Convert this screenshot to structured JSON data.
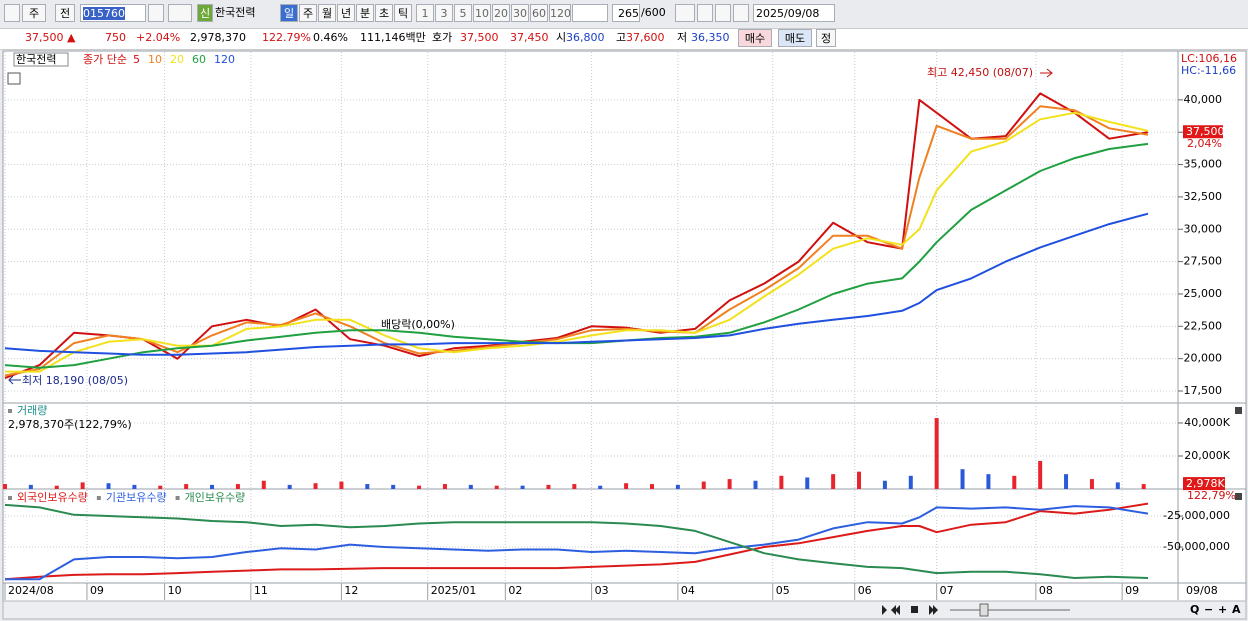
{
  "toolbar": {
    "market": "주",
    "prev": "전",
    "code": "015760",
    "badge": "신",
    "name": "한국전력",
    "periods": [
      "일",
      "주",
      "월",
      "년",
      "분",
      "초",
      "틱"
    ],
    "intervals": [
      "1",
      "3",
      "5",
      "10",
      "20",
      "30",
      "60",
      "120"
    ],
    "count": "265",
    "max": "/600",
    "date": "2025/09/08"
  },
  "quote": {
    "price": "37,500 ▲",
    "change": "750",
    "rate": "+2.04%",
    "volume": "2,978,370",
    "volume_ratio": "122.79%",
    "turnover": "0.46%",
    "amount": "111,146백만",
    "quote_label": "호가",
    "ask": "37,500",
    "bid": "37,450",
    "open_label": "시",
    "open": "36,800",
    "high_label": "고",
    "high": "37,600",
    "low_label": "저",
    "low": "36,350",
    "buy": "매수",
    "sell": "매도",
    "correct": "정"
  },
  "chart_data": [
    {
      "type": "line",
      "title": "한국전력",
      "legend_prefix": "종가 단순",
      "xlim": [
        0,
        265
      ],
      "x": [
        0,
        8,
        16,
        24,
        32,
        40,
        48,
        56,
        64,
        72,
        80,
        88,
        96,
        104,
        112,
        120,
        128,
        136,
        144,
        152,
        160,
        168,
        176,
        184,
        192,
        200,
        208,
        212,
        216,
        224,
        232,
        240,
        248,
        256,
        265
      ],
      "ylim": [
        16650,
        43700
      ],
      "yticks": [
        {
          "value": 17500,
          "label": "17,500"
        },
        {
          "value": 20000,
          "label": "20,000"
        },
        {
          "value": 22500,
          "label": "22,500"
        },
        {
          "value": 25000,
          "label": "25,000"
        },
        {
          "value": 27500,
          "label": "27,500"
        },
        {
          "value": 30000,
          "label": "30,000"
        },
        {
          "value": 32500,
          "label": "32,500"
        },
        {
          "value": 35000,
          "label": "35,000"
        },
        {
          "value": 37500,
          "label": "37,500"
        },
        {
          "value": 40000,
          "label": "40,000"
        }
      ],
      "grid": true,
      "series": [
        {
          "name": "5",
          "color": "#d01010",
          "values": [
            18500,
            19500,
            22000,
            21800,
            21500,
            20000,
            22500,
            23000,
            22500,
            23800,
            21500,
            21000,
            20200,
            20800,
            21000,
            21300,
            21600,
            22500,
            22400,
            22000,
            22300,
            24500,
            25800,
            27500,
            30500,
            29000,
            28500,
            40000,
            39000,
            37000,
            37200,
            40500,
            39000,
            37000,
            37500
          ]
        },
        {
          "name": "10",
          "color": "#f08020",
          "values": [
            18700,
            19200,
            21200,
            21800,
            21500,
            20500,
            21800,
            22800,
            22600,
            23500,
            22500,
            21200,
            20400,
            20600,
            20900,
            21200,
            21500,
            22200,
            22300,
            22100,
            22000,
            23800,
            25300,
            27000,
            29500,
            29500,
            28500,
            34000,
            38000,
            37000,
            37000,
            39500,
            39200,
            37800,
            37300
          ]
        },
        {
          "name": "20",
          "color": "#f2e21c",
          "values": [
            19000,
            19000,
            20500,
            21300,
            21500,
            21000,
            21000,
            22300,
            22500,
            23000,
            23000,
            21800,
            20800,
            20500,
            20800,
            21000,
            21300,
            21800,
            22200,
            22200,
            22000,
            23000,
            24800,
            26500,
            28500,
            29300,
            28800,
            30000,
            33000,
            36000,
            36800,
            38500,
            39000,
            38300,
            37600
          ]
        },
        {
          "name": "60",
          "color": "#20a040",
          "values": [
            19500,
            19300,
            19500,
            20000,
            20500,
            20800,
            21000,
            21400,
            21700,
            22000,
            22200,
            22200,
            22000,
            21700,
            21500,
            21300,
            21200,
            21200,
            21400,
            21600,
            21700,
            22000,
            22800,
            23800,
            25000,
            25800,
            26200,
            27500,
            29000,
            31500,
            33000,
            34500,
            35500,
            36200,
            36600
          ]
        },
        {
          "name": "120",
          "color": "#2050e0",
          "values": [
            20800,
            20600,
            20500,
            20400,
            20300,
            20300,
            20400,
            20500,
            20700,
            20900,
            21000,
            21100,
            21100,
            21200,
            21200,
            21200,
            21200,
            21300,
            21400,
            21500,
            21600,
            21800,
            22300,
            22700,
            23000,
            23300,
            23700,
            24300,
            25300,
            26200,
            27500,
            28600,
            29500,
            30400,
            31200
          ]
        }
      ],
      "annotations": {
        "high": "최고 42,450 (08/07)",
        "low": "최저 18,190 (08/05)",
        "dividend": "배당락(0,00%)"
      },
      "lc": "LC:106,16",
      "hc": "HC:-11,66",
      "last_price": "37,500",
      "last_rate": "2,04%"
    },
    {
      "type": "bar",
      "title": "거래량",
      "subtitle": "2,978,370주(122,79%)",
      "xlim": [
        0,
        265
      ],
      "x": [
        0,
        6,
        12,
        18,
        24,
        30,
        36,
        42,
        48,
        54,
        60,
        66,
        72,
        78,
        84,
        90,
        96,
        102,
        108,
        114,
        120,
        126,
        132,
        138,
        144,
        150,
        156,
        162,
        168,
        174,
        180,
        186,
        192,
        198,
        204,
        210,
        216,
        222,
        228,
        234,
        240,
        246,
        252,
        258,
        264
      ],
      "values": [
        3000,
        2500,
        2000,
        4000,
        3500,
        2500,
        2000,
        3000,
        2500,
        3000,
        5000,
        2500,
        3500,
        4500,
        3000,
        2500,
        2000,
        3000,
        2500,
        2000,
        2000,
        2500,
        3000,
        2000,
        3500,
        3000,
        2500,
        4500,
        6000,
        5000,
        8000,
        7000,
        9000,
        10500,
        5000,
        8000,
        43000,
        12000,
        9000,
        8000,
        17000,
        9000,
        6000,
        4000,
        2978
      ],
      "colors": [
        "#e8242c",
        "#2a5ad8",
        "#e8242c",
        "#e8242c",
        "#2a5ad8",
        "#2a5ad8",
        "#e8242c",
        "#e8242c",
        "#2a5ad8",
        "#e8242c",
        "#e8242c",
        "#2a5ad8",
        "#e8242c",
        "#e8242c",
        "#2a5ad8",
        "#2a5ad8",
        "#e8242c",
        "#e8242c",
        "#2a5ad8",
        "#e8242c",
        "#2a5ad8",
        "#e8242c",
        "#e8242c",
        "#2a5ad8",
        "#e8242c",
        "#e8242c",
        "#2a5ad8",
        "#e8242c",
        "#e8242c",
        "#2a5ad8",
        "#e8242c",
        "#2a5ad8",
        "#e8242c",
        "#e8242c",
        "#2a5ad8",
        "#2a5ad8",
        "#e8242c",
        "#2a5ad8",
        "#2a5ad8",
        "#e8242c",
        "#e8242c",
        "#2a5ad8",
        "#e8242c",
        "#2a5ad8",
        "#e8242c"
      ],
      "ylim": [
        0,
        51500
      ],
      "yticks": [
        {
          "value": 20000,
          "label": "20,000K"
        },
        {
          "value": 40000,
          "label": "40,000K"
        }
      ],
      "grid": true,
      "last_volume": "2,978K",
      "last_ratio": "122,79%"
    },
    {
      "type": "line",
      "xlim": [
        0,
        265
      ],
      "x": [
        0,
        8,
        16,
        24,
        32,
        40,
        48,
        56,
        64,
        72,
        80,
        88,
        96,
        104,
        112,
        120,
        128,
        136,
        144,
        152,
        160,
        168,
        176,
        184,
        192,
        200,
        208,
        212,
        216,
        224,
        232,
        240,
        248,
        256,
        265
      ],
      "ylim": [
        -78200000,
        -4000000
      ],
      "yticks": [
        {
          "value": -50000000,
          "label": "-50,000,000"
        },
        {
          "value": -25000000,
          "label": "-25,000,000"
        }
      ],
      "grid": true,
      "xticks": [
        {
          "value": 0,
          "label": "2024/08"
        },
        {
          "value": 19,
          "label": "09"
        },
        {
          "value": 37,
          "label": "10"
        },
        {
          "value": 57,
          "label": "11"
        },
        {
          "value": 78,
          "label": "12"
        },
        {
          "value": 98,
          "label": "2025/01"
        },
        {
          "value": 116,
          "label": "02"
        },
        {
          "value": 136,
          "label": "03"
        },
        {
          "value": 156,
          "label": "04"
        },
        {
          "value": 178,
          "label": "05"
        },
        {
          "value": 197,
          "label": "06"
        },
        {
          "value": 216,
          "label": "07"
        },
        {
          "value": 239,
          "label": "08"
        },
        {
          "value": 259,
          "label": "09"
        }
      ],
      "end_label": "09/08",
      "series": [
        {
          "name": "외국인보유수량",
          "color": "#dd1a1a",
          "values": [
            -76000000,
            -74000000,
            -72500000,
            -72000000,
            -72000000,
            -71000000,
            -70000000,
            -69000000,
            -68000000,
            -68000000,
            -67500000,
            -67000000,
            -67000000,
            -67000000,
            -67000000,
            -67000000,
            -67000000,
            -66000000,
            -65000000,
            -64000000,
            -62000000,
            -56000000,
            -50000000,
            -47000000,
            -42000000,
            -37000000,
            -33000000,
            -33000000,
            -38000000,
            -32000000,
            -30000000,
            -21000000,
            -23000000,
            -20000000,
            -15000000
          ]
        },
        {
          "name": "기관보유수량",
          "color": "#2d5ee0",
          "values": [
            -76000000,
            -76000000,
            -60000000,
            -58000000,
            -58000000,
            -59000000,
            -58000000,
            -54000000,
            -51000000,
            -52000000,
            -48000000,
            -50000000,
            -51000000,
            -52000000,
            -53000000,
            -52000000,
            -52000000,
            -54000000,
            -53000000,
            -54000000,
            -55000000,
            -51000000,
            -48000000,
            -44000000,
            -35000000,
            -30000000,
            -31000000,
            -26000000,
            -18000000,
            -19000000,
            -18000000,
            -20000000,
            -17000000,
            -18000000,
            -23000000
          ]
        },
        {
          "name": "개인보유수량",
          "color": "#2a8a50",
          "values": [
            -16000000,
            -18000000,
            -24000000,
            -25000000,
            -26000000,
            -27000000,
            -29000000,
            -30000000,
            -33000000,
            -32000000,
            -34000000,
            -33000000,
            -31000000,
            -30000000,
            -30000000,
            -30000000,
            -30000000,
            -30000000,
            -31000000,
            -33000000,
            -37000000,
            -46000000,
            -55000000,
            -60000000,
            -63000000,
            -66000000,
            -67000000,
            -69000000,
            -71000000,
            -70000000,
            -70000000,
            -72000000,
            -75000000,
            -74000000,
            -75000000
          ]
        }
      ]
    }
  ],
  "controls": [
    "Q",
    "−",
    "+",
    "A"
  ]
}
